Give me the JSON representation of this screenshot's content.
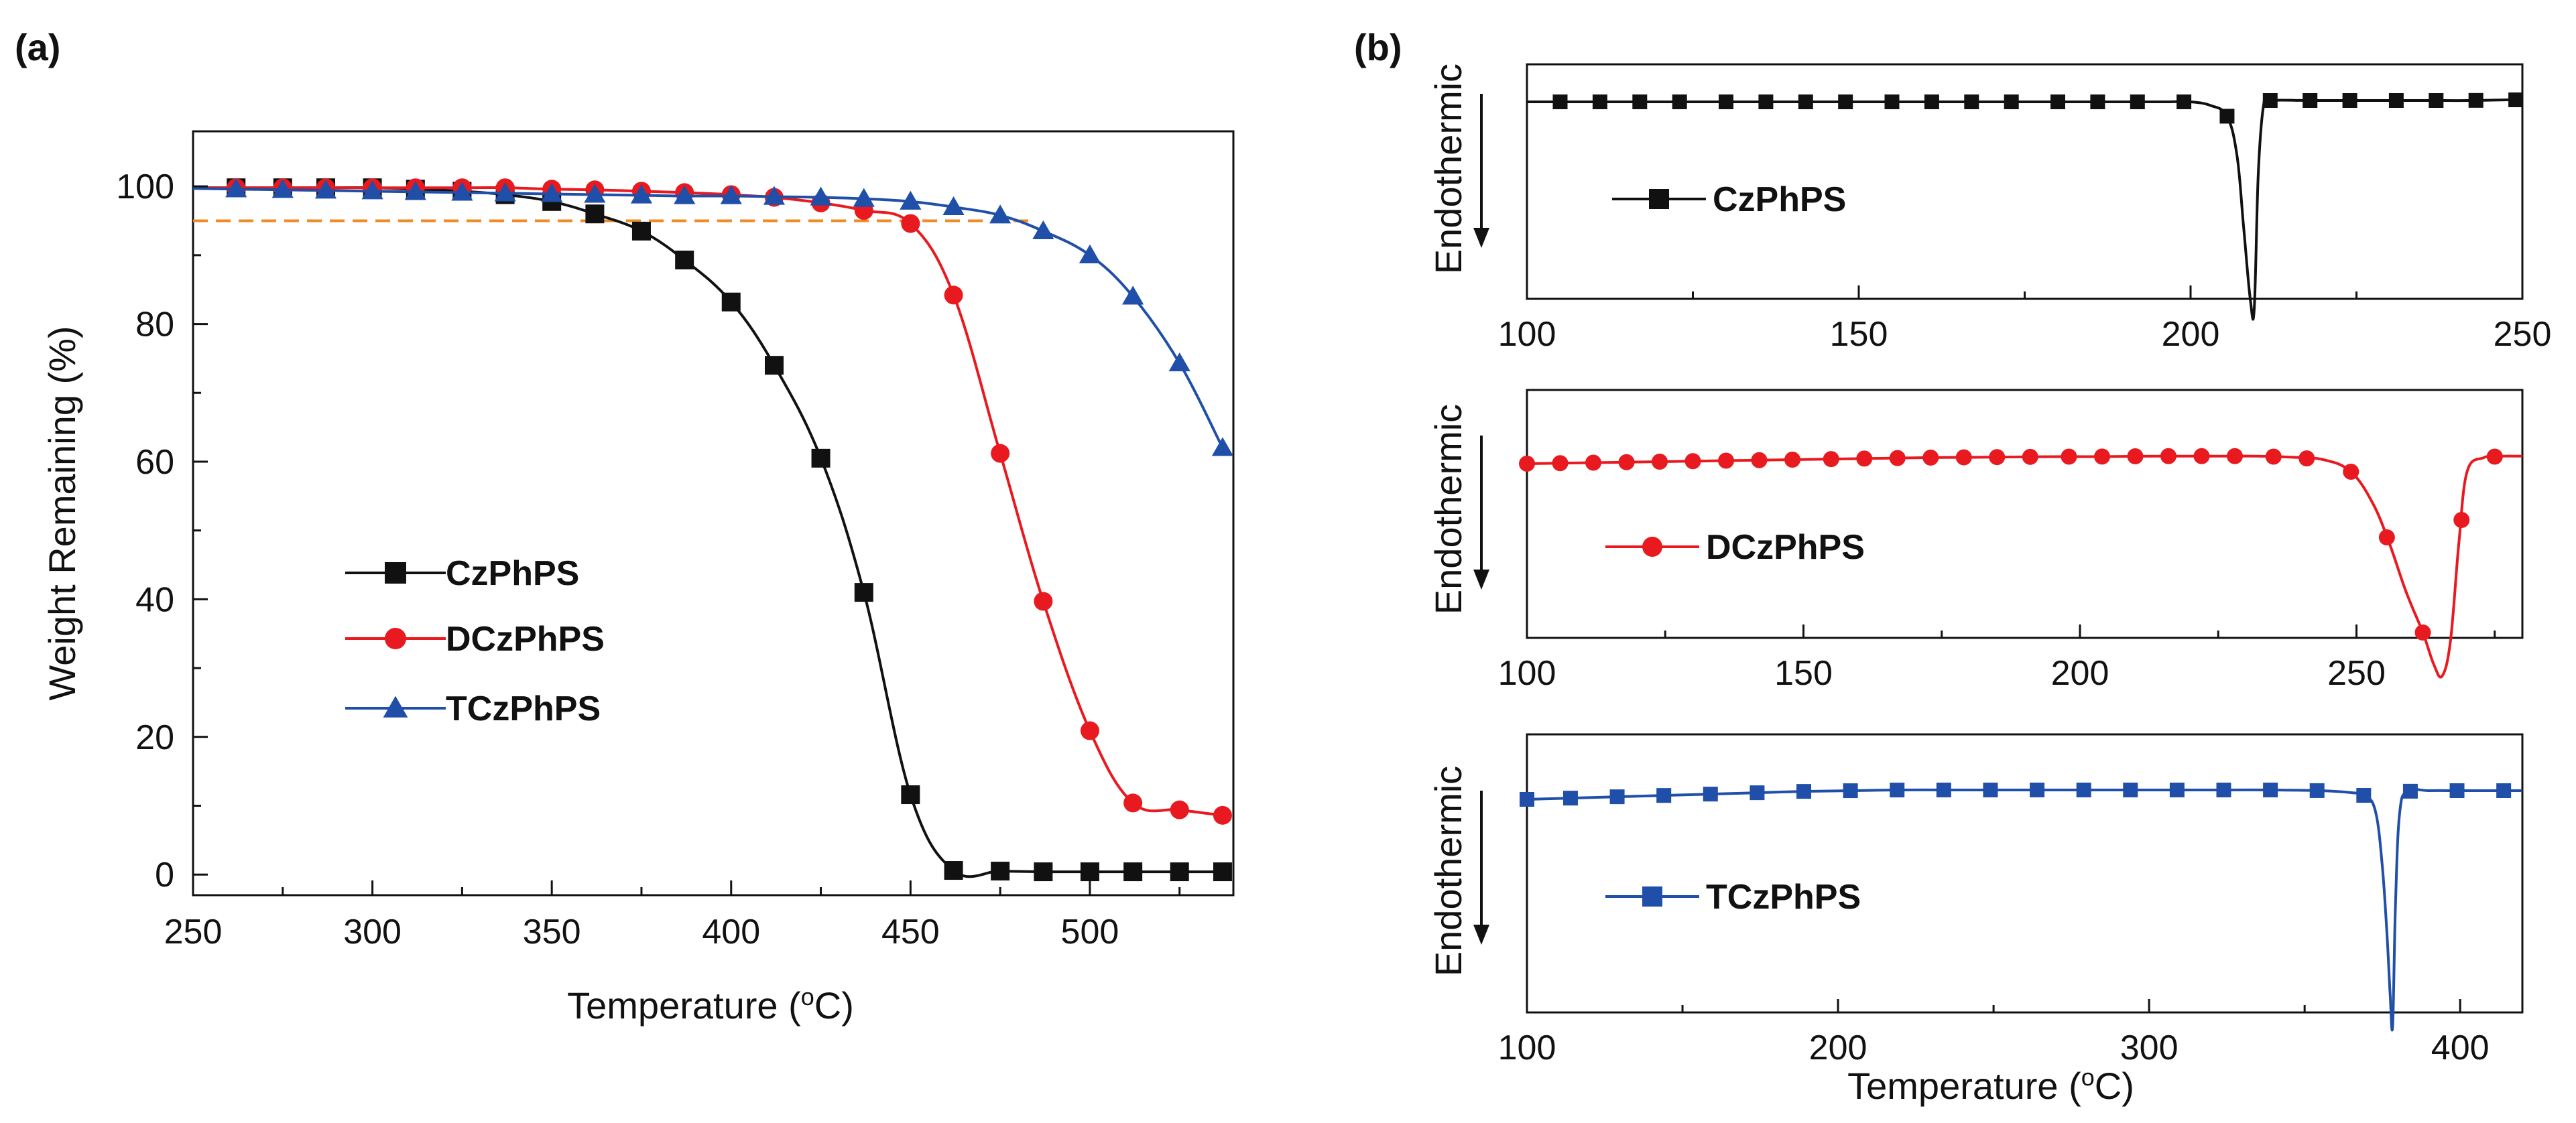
{
  "panel_labels": {
    "a": "(a)",
    "b": "(b)"
  },
  "colors": {
    "CzPhPS": "#111111",
    "DCzPhPS": "#e8191f",
    "TCzPhPS": "#1f4fa8",
    "reference": "#f08a24"
  },
  "chart_data": [
    {
      "id": "tga",
      "type": "line",
      "title": "",
      "xlabel": "Temperature (oC)",
      "xlabel_main": "Temperature (",
      "xlabel_sup": "o",
      "xlabel_end": "C)",
      "ylabel": "Weight Remaining (%)",
      "xlim": [
        250,
        540
      ],
      "ylim": [
        -3,
        108
      ],
      "xticks": [
        250,
        300,
        350,
        400,
        450,
        500
      ],
      "yticks": [
        0,
        20,
        40,
        60,
        80,
        100
      ],
      "legend_position": "lower-left",
      "reference_line": {
        "y": 95,
        "x_range": [
          250,
          485
        ],
        "style": "dashed"
      },
      "series": [
        {
          "name": "CzPhPS",
          "marker": "square",
          "x": [
            250,
            262,
            275,
            287,
            300,
            312,
            325,
            337,
            350,
            362,
            375,
            387,
            400,
            412,
            425,
            437,
            450,
            462,
            475,
            487,
            500,
            512,
            525,
            537
          ],
          "y": [
            99.8,
            99.8,
            99.8,
            99.8,
            99.8,
            99.6,
            99.3,
            98.8,
            97.8,
            96.0,
            93.5,
            89.3,
            83.2,
            74.0,
            60.5,
            41.0,
            11.6,
            0.6,
            0.5,
            0.4,
            0.4,
            0.4,
            0.4,
            0.4
          ]
        },
        {
          "name": "DCzPhPS",
          "marker": "circle",
          "x": [
            250,
            262,
            275,
            287,
            300,
            312,
            325,
            337,
            350,
            362,
            375,
            387,
            400,
            412,
            425,
            437,
            450,
            462,
            475,
            487,
            500,
            512,
            525,
            537
          ],
          "y": [
            99.8,
            99.8,
            99.8,
            99.8,
            99.8,
            99.8,
            99.8,
            99.8,
            99.6,
            99.5,
            99.3,
            99.1,
            98.8,
            98.4,
            97.6,
            96.5,
            94.6,
            84.2,
            61.2,
            39.7,
            20.9,
            10.4,
            9.4,
            8.6
          ]
        },
        {
          "name": "TCzPhPS",
          "marker": "triangle",
          "x": [
            250,
            262,
            275,
            287,
            300,
            312,
            325,
            337,
            350,
            362,
            375,
            387,
            400,
            412,
            425,
            437,
            450,
            462,
            475,
            487,
            500,
            512,
            525,
            537
          ],
          "y": [
            99.7,
            99.6,
            99.5,
            99.4,
            99.3,
            99.2,
            99.1,
            99.0,
            98.9,
            98.8,
            98.7,
            98.6,
            98.6,
            98.5,
            98.4,
            98.2,
            97.8,
            97.0,
            95.8,
            93.5,
            90.0,
            84.0,
            74.3,
            62.0
          ]
        }
      ]
    },
    {
      "id": "dsc-czphps",
      "type": "line",
      "ylabel": "Endothermic",
      "xlim": [
        100,
        250
      ],
      "xticks": [
        100,
        150,
        200,
        250
      ],
      "legend_position": "center-left",
      "series": [
        {
          "name": "CzPhPS",
          "marker": "square",
          "x": [
            100,
            106,
            112,
            118,
            124,
            130,
            136,
            142,
            148,
            154,
            160,
            166,
            172,
            178,
            184,
            190,
            196,
            200,
            203,
            205.5,
            207,
            208,
            209,
            209.6,
            210.2,
            211,
            212,
            218,
            224,
            230,
            236,
            242,
            248,
            250
          ],
          "y": [
            0,
            0,
            0,
            0,
            0,
            0,
            0,
            0,
            0,
            0,
            0,
            0,
            0,
            0,
            0,
            0,
            0,
            0,
            -0.02,
            -0.08,
            -0.3,
            -0.7,
            -1.1,
            -1.15,
            -0.4,
            -0.02,
            0.02,
            0.02,
            0.02,
            0.02,
            0.02,
            0.02,
            0.03,
            0.03
          ],
          "marker_x": [
            105,
            111,
            117,
            123,
            130,
            136,
            142,
            148,
            155,
            161,
            167,
            173,
            180,
            186,
            192,
            199,
            205.5,
            212,
            218,
            224,
            231,
            237,
            243,
            249
          ]
        }
      ]
    },
    {
      "id": "dsc-dczphps",
      "type": "line",
      "ylabel": "Endothermic",
      "xlim": [
        100,
        280
      ],
      "xticks": [
        100,
        150,
        200,
        250
      ],
      "legend_position": "center-left",
      "series": [
        {
          "name": "DCzPhPS",
          "marker": "circle",
          "x": [
            100,
            106,
            112,
            118,
            124,
            130,
            136,
            142,
            148,
            154,
            160,
            166,
            172,
            178,
            184,
            190,
            196,
            202,
            208,
            214,
            220,
            226,
            232,
            238,
            244,
            249,
            253,
            256,
            259,
            262,
            264,
            265.5,
            267,
            268.5,
            270,
            273,
            276,
            280
          ],
          "y": [
            0.0,
            0.01,
            0.02,
            0.03,
            0.04,
            0.05,
            0.06,
            0.07,
            0.08,
            0.09,
            0.1,
            0.11,
            0.12,
            0.125,
            0.13,
            0.135,
            0.14,
            0.14,
            0.145,
            0.15,
            0.15,
            0.15,
            0.15,
            0.13,
            0.08,
            -0.05,
            -0.25,
            -0.5,
            -0.8,
            -1.05,
            -1.25,
            -1.32,
            -1.1,
            -0.5,
            -0.05,
            0.12,
            0.15,
            0.15
          ],
          "marker_x": [
            100,
            106,
            112,
            118,
            124,
            130,
            136,
            142,
            148,
            155,
            161,
            167,
            173,
            179,
            185,
            191,
            198,
            204,
            210,
            216,
            222,
            228,
            235,
            241,
            249,
            255.5,
            262,
            269,
            275
          ]
        }
      ]
    },
    {
      "id": "dsc-tczphps",
      "type": "line",
      "ylabel": "Endothermic",
      "xlim": [
        100,
        420
      ],
      "xticks": [
        100,
        200,
        300,
        400
      ],
      "xlabel": "Temperature (oC)",
      "xlabel_main": "Temperature (",
      "xlabel_sup": "o",
      "xlabel_end": "C)",
      "legend_position": "center-left",
      "series": [
        {
          "name": "TCzPhPS",
          "marker": "square",
          "x": [
            100,
            115,
            130,
            145,
            160,
            175,
            190,
            205,
            220,
            235,
            250,
            265,
            280,
            295,
            310,
            325,
            340,
            355,
            365,
            370,
            373,
            375,
            376.5,
            377.5,
            378.3,
            379.2,
            380.5,
            383,
            390,
            400,
            410,
            420
          ],
          "y": [
            0.0,
            0.02,
            0.04,
            0.06,
            0.08,
            0.1,
            0.12,
            0.13,
            0.14,
            0.14,
            0.14,
            0.14,
            0.14,
            0.14,
            0.14,
            0.14,
            0.14,
            0.13,
            0.1,
            0.05,
            -0.1,
            -0.45,
            -0.9,
            -1.3,
            -1.5,
            -0.7,
            -0.1,
            0.12,
            0.13,
            0.13,
            0.13,
            0.13
          ],
          "marker_x": [
            100,
            114,
            129,
            144,
            159,
            174,
            189,
            204,
            219,
            234,
            249,
            264,
            279,
            294,
            309,
            324,
            339,
            354,
            369,
            384,
            399,
            414
          ]
        }
      ]
    }
  ]
}
